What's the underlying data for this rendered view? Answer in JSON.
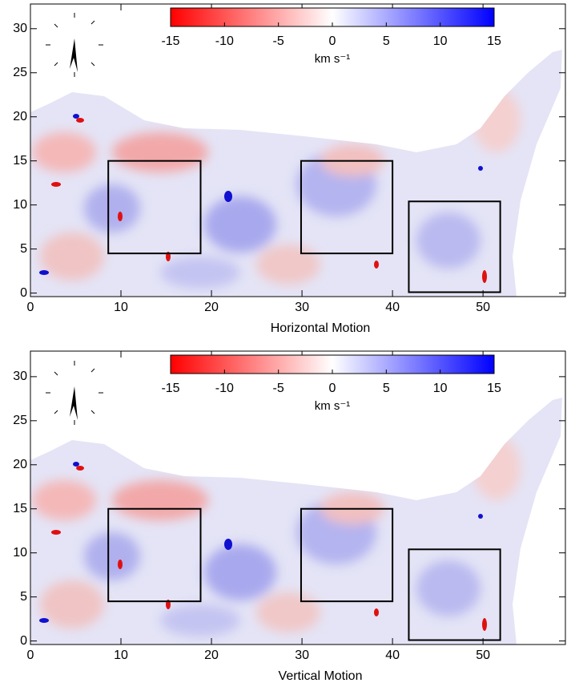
{
  "chart_data": [
    {
      "type": "heatmap",
      "xlabel": "Horizontal Motion",
      "xlim": [
        0,
        59.1
      ],
      "xticks": [
        0,
        10,
        20,
        30,
        40,
        50
      ],
      "ylim": [
        -0.4,
        32.8
      ],
      "yticks": [
        0,
        5,
        10,
        15,
        20,
        25,
        30
      ],
      "clim": [
        -15,
        15
      ],
      "cticks": [
        -15,
        -10,
        -5,
        0,
        5,
        10,
        15
      ],
      "colorbar_label": "km s⁻¹",
      "colormap": [
        "#ff0000",
        "#ffffff",
        "#0000ff"
      ],
      "regions": [
        {
          "x": [
            8.6,
            18.8
          ],
          "y": [
            4.5,
            15
          ]
        },
        {
          "x": [
            29.9,
            40
          ],
          "y": [
            4.5,
            15
          ]
        },
        {
          "x": [
            41.8,
            51.9
          ],
          "y": [
            0.1,
            10.4
          ]
        }
      ]
    },
    {
      "type": "heatmap",
      "xlabel": "Vertical Motion",
      "xlim": [
        0,
        59.1
      ],
      "xticks": [
        0,
        10,
        20,
        30,
        40,
        50
      ],
      "ylim": [
        -0.4,
        32.9
      ],
      "yticks": [
        0,
        5,
        10,
        15,
        20,
        25,
        30
      ],
      "clim": [
        -15,
        15
      ],
      "cticks": [
        -15,
        -10,
        -5,
        0,
        5,
        10,
        15
      ],
      "colorbar_label": "km s⁻¹",
      "colormap": [
        "#ff0000",
        "#ffffff",
        "#0000ff"
      ],
      "regions": [
        {
          "x": [
            8.6,
            18.8
          ],
          "y": [
            4.5,
            15
          ]
        },
        {
          "x": [
            29.9,
            40
          ],
          "y": [
            4.5,
            15
          ]
        },
        {
          "x": [
            41.8,
            51.9
          ],
          "y": [
            0.1,
            10.4
          ]
        }
      ]
    }
  ]
}
